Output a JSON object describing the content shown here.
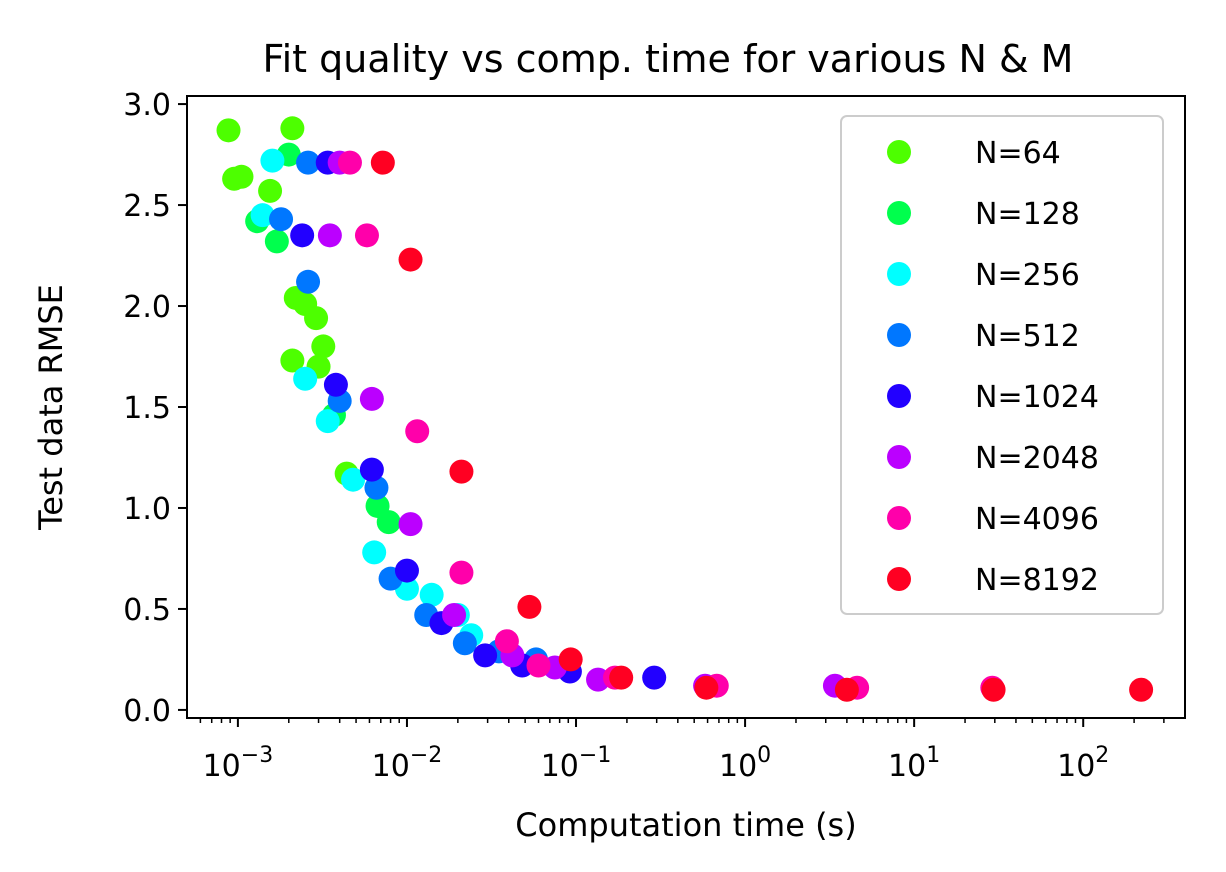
{
  "chart_data": {
    "type": "scatter",
    "title": "Fit quality vs comp. time for various N & M",
    "xlabel": "Computation time (s)",
    "ylabel": "Test data RMSE",
    "xscale": "log",
    "xlim": [
      0.0005,
      400
    ],
    "ylim": [
      -0.04,
      3.04
    ],
    "x_ticks": [
      {
        "value": 0.001,
        "base": "10",
        "exp": "−3"
      },
      {
        "value": 0.01,
        "base": "10",
        "exp": "−2"
      },
      {
        "value": 0.1,
        "base": "10",
        "exp": "−1"
      },
      {
        "value": 1,
        "base": "10",
        "exp": "0"
      },
      {
        "value": 10,
        "base": "10",
        "exp": "1"
      },
      {
        "value": 100,
        "base": "10",
        "exp": "2"
      }
    ],
    "y_ticks": [
      {
        "value": 0.0,
        "label": "0.0"
      },
      {
        "value": 0.5,
        "label": "0.5"
      },
      {
        "value": 1.0,
        "label": "1.0"
      },
      {
        "value": 1.5,
        "label": "1.5"
      },
      {
        "value": 2.0,
        "label": "2.0"
      },
      {
        "value": 2.5,
        "label": "2.5"
      },
      {
        "value": 3.0,
        "label": "3.0"
      }
    ],
    "grid": false,
    "legend_position": "top-right",
    "series": [
      {
        "name": "N=64",
        "color": "#4dff00",
        "points": [
          [
            0.00088,
            2.87
          ],
          [
            0.00095,
            2.63
          ],
          [
            0.00105,
            2.64
          ],
          [
            0.00155,
            2.57
          ],
          [
            0.0021,
            2.88
          ],
          [
            0.0022,
            2.04
          ],
          [
            0.0025,
            2.01
          ],
          [
            0.0029,
            1.94
          ],
          [
            0.0021,
            1.73
          ],
          [
            0.0032,
            1.8
          ],
          [
            0.003,
            1.7
          ],
          [
            0.0044,
            1.17
          ]
        ]
      },
      {
        "name": "N=128",
        "color": "#00ff4d",
        "points": [
          [
            0.002,
            2.75
          ],
          [
            0.0013,
            2.42
          ],
          [
            0.0017,
            2.32
          ],
          [
            0.0037,
            1.46
          ],
          [
            0.0067,
            1.01
          ],
          [
            0.0078,
            0.93
          ]
        ]
      },
      {
        "name": "N=256",
        "color": "#00ffff",
        "points": [
          [
            0.0016,
            2.72
          ],
          [
            0.0014,
            2.45
          ],
          [
            0.0025,
            1.64
          ],
          [
            0.0034,
            1.43
          ],
          [
            0.0048,
            1.14
          ],
          [
            0.0064,
            0.78
          ],
          [
            0.01,
            0.6
          ],
          [
            0.014,
            0.57
          ],
          [
            0.02,
            0.47
          ],
          [
            0.024,
            0.37
          ]
        ]
      },
      {
        "name": "N=512",
        "color": "#0077ff",
        "points": [
          [
            0.0026,
            2.71
          ],
          [
            0.0018,
            2.43
          ],
          [
            0.0026,
            2.12
          ],
          [
            0.004,
            1.53
          ],
          [
            0.0066,
            1.1
          ],
          [
            0.008,
            0.65
          ],
          [
            0.013,
            0.47
          ],
          [
            0.022,
            0.33
          ],
          [
            0.035,
            0.29
          ],
          [
            0.058,
            0.25
          ]
        ]
      },
      {
        "name": "N=1024",
        "color": "#2200ff",
        "points": [
          [
            0.0034,
            2.71
          ],
          [
            0.0024,
            2.35
          ],
          [
            0.0038,
            1.61
          ],
          [
            0.0062,
            1.19
          ],
          [
            0.01,
            0.69
          ],
          [
            0.016,
            0.43
          ],
          [
            0.029,
            0.27
          ],
          [
            0.048,
            0.22
          ],
          [
            0.092,
            0.19
          ],
          [
            0.29,
            0.16
          ]
        ]
      },
      {
        "name": "N=2048",
        "color": "#bb00ff",
        "points": [
          [
            0.004,
            2.71
          ],
          [
            0.0035,
            2.35
          ],
          [
            0.0062,
            1.54
          ],
          [
            0.0105,
            0.92
          ],
          [
            0.019,
            0.47
          ],
          [
            0.042,
            0.27
          ],
          [
            0.075,
            0.21
          ],
          [
            0.135,
            0.15
          ],
          [
            0.58,
            0.12
          ],
          [
            3.4,
            0.12
          ]
        ]
      },
      {
        "name": "N=4096",
        "color": "#ff00aa",
        "points": [
          [
            0.0046,
            2.71
          ],
          [
            0.0058,
            2.35
          ],
          [
            0.0115,
            1.38
          ],
          [
            0.021,
            0.68
          ],
          [
            0.039,
            0.34
          ],
          [
            0.06,
            0.22
          ],
          [
            0.17,
            0.16
          ],
          [
            0.68,
            0.12
          ],
          [
            4.6,
            0.11
          ],
          [
            29.0,
            0.11
          ]
        ]
      },
      {
        "name": "N=8192",
        "color": "#ff0022",
        "points": [
          [
            0.0072,
            2.71
          ],
          [
            0.0105,
            2.23
          ],
          [
            0.021,
            1.18
          ],
          [
            0.053,
            0.51
          ],
          [
            0.093,
            0.25
          ],
          [
            0.185,
            0.16
          ],
          [
            0.59,
            0.11
          ],
          [
            4.0,
            0.1
          ],
          [
            29.5,
            0.1
          ],
          [
            220.0,
            0.1
          ]
        ]
      }
    ]
  }
}
